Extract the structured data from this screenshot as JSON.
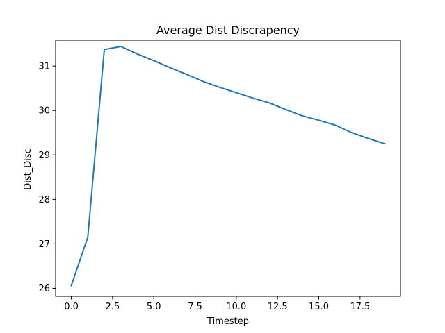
{
  "chart_data": {
    "type": "line",
    "title": "Average Dist Discrapency",
    "xlabel": "Timestep",
    "ylabel": "Dist_Disc",
    "x": [
      0,
      1,
      2,
      3,
      4,
      5,
      6,
      7,
      8,
      9,
      10,
      11,
      12,
      13,
      14,
      15,
      16,
      17,
      18,
      19
    ],
    "series": [
      {
        "values": [
          26.06,
          27.15,
          31.37,
          31.44,
          31.27,
          31.12,
          30.96,
          30.81,
          30.65,
          30.52,
          30.4,
          30.28,
          30.17,
          30.02,
          29.88,
          29.78,
          29.67,
          29.5,
          29.37,
          29.25
        ],
        "color": "#1f77b4"
      }
    ],
    "xlim": [
      -0.95,
      19.95
    ],
    "ylim": [
      25.82,
      31.58
    ],
    "xticks": [
      0.0,
      2.5,
      5.0,
      7.5,
      10.0,
      12.5,
      15.0,
      17.5
    ],
    "xtick_labels": [
      "0.0",
      "2.5",
      "5.0",
      "7.5",
      "10.0",
      "12.5",
      "15.0",
      "17.5"
    ],
    "yticks": [
      26,
      27,
      28,
      29,
      30,
      31
    ],
    "ytick_labels": [
      "26",
      "27",
      "28",
      "29",
      "30",
      "31"
    ],
    "grid": false,
    "legend": "none"
  }
}
